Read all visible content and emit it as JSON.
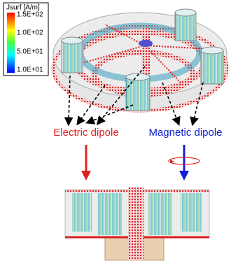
{
  "legend": {
    "title": "Jsurf [A/m]",
    "ticks": [
      "1.5E+02",
      "1.0E+02",
      "5.0E+01",
      "1.0E+01"
    ]
  },
  "labels": {
    "electric": "Electric dipole",
    "magnetic": "Magnetic dipole"
  }
}
